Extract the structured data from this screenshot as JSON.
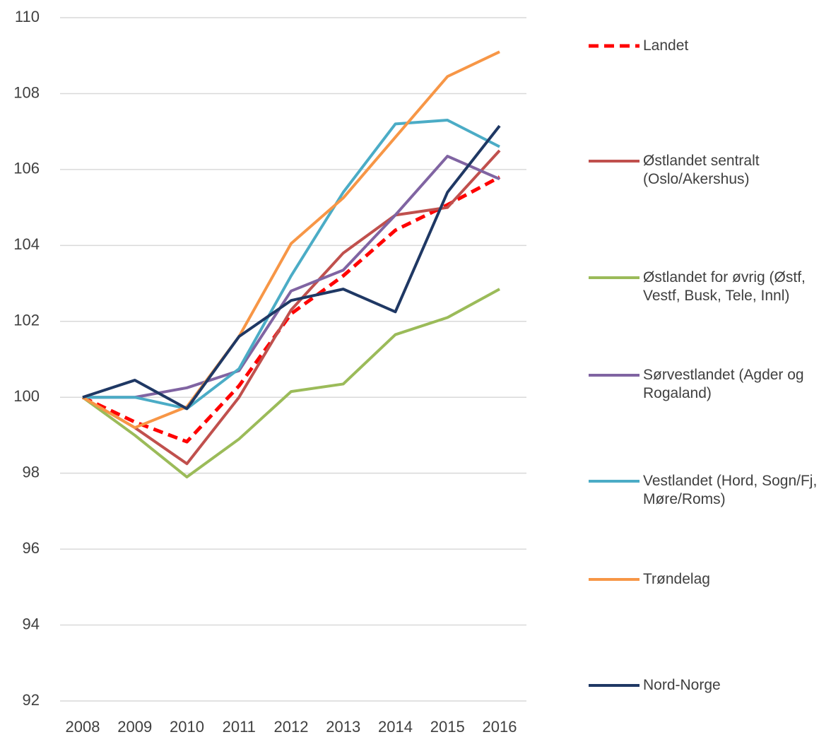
{
  "chart_data": {
    "type": "line",
    "categories": [
      "2008",
      "2009",
      "2010",
      "2011",
      "2012",
      "2013",
      "2014",
      "2015",
      "2016"
    ],
    "series": [
      {
        "name": "Landet",
        "color": "#ff0000",
        "dashed": true,
        "values": [
          100,
          99.35,
          98.83,
          100.3,
          102.2,
          103.2,
          104.4,
          105.07,
          105.8
        ]
      },
      {
        "name": "Østlandet sentralt (Oslo/Akershus)",
        "color": "#c0504d",
        "values": [
          100,
          99.2,
          98.25,
          100.0,
          102.3,
          103.8,
          104.8,
          105.0,
          106.5
        ]
      },
      {
        "name": "Østlandet for øvrig (Østf, Vestf, Busk, Tele, Innl)",
        "color": "#9bbb59",
        "values": [
          100,
          99.0,
          97.9,
          98.9,
          100.15,
          100.35,
          101.65,
          102.1,
          102.85
        ]
      },
      {
        "name": "Sørvestlandet (Agder og Rogaland)",
        "color": "#8064a2",
        "values": [
          100,
          100.0,
          100.25,
          100.7,
          102.8,
          103.35,
          104.8,
          106.35,
          105.75
        ]
      },
      {
        "name": "Vestlandet (Hord, Sogn/Fj, Møre/Roms)",
        "color": "#4bacc6",
        "values": [
          100,
          100.0,
          99.7,
          100.75,
          103.2,
          105.4,
          107.2,
          107.3,
          106.6
        ]
      },
      {
        "name": "Trøndelag",
        "color": "#f79646",
        "values": [
          100,
          99.2,
          99.75,
          101.6,
          104.05,
          105.25,
          106.85,
          108.45,
          109.1
        ]
      },
      {
        "name": "Nord-Norge",
        "color": "#1f3864",
        "values": [
          100,
          100.45,
          99.7,
          101.6,
          102.55,
          102.85,
          102.25,
          105.4,
          107.15
        ]
      }
    ],
    "ylim": [
      92,
      110
    ],
    "yticks": [
      92,
      94,
      96,
      98,
      100,
      102,
      104,
      106,
      108,
      110
    ],
    "grid": true
  }
}
